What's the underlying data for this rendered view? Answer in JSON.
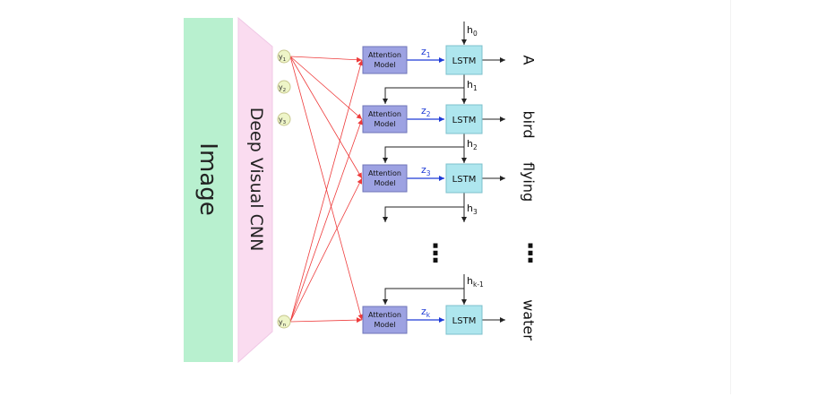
{
  "image_label": "Image",
  "cnn_label": "Deep Visual CNN",
  "features": [
    "y",
    "y",
    "y",
    "y"
  ],
  "feature_subscripts": [
    "1",
    "2",
    "3",
    "n"
  ],
  "attention_line1": "Attention",
  "attention_line2": "Model",
  "lstm_label": "LSTM",
  "z_symbol": "z",
  "z_subscripts": [
    "1",
    "2",
    "3",
    "k"
  ],
  "h_symbol": "h",
  "h_subscripts": [
    "0",
    "1",
    "2",
    "3",
    "k-1"
  ],
  "words": [
    "A",
    "bird",
    "flying",
    "water"
  ],
  "ellipsis": "⋮",
  "colors": {
    "image_block": "#b8f0cf",
    "cnn_block": "#fadcf0",
    "feature_circle": "#eef5c8",
    "feature_circle_stroke": "#c8c890",
    "attention_box": "#9da2e2",
    "attention_stroke": "#6f74b8",
    "lstm_box": "#aee6ee",
    "lstm_stroke": "#7cc0cc",
    "red_connections": "#ee3b3b",
    "z_arrow": "#1e3bd6",
    "black_arrows": "#222222"
  }
}
